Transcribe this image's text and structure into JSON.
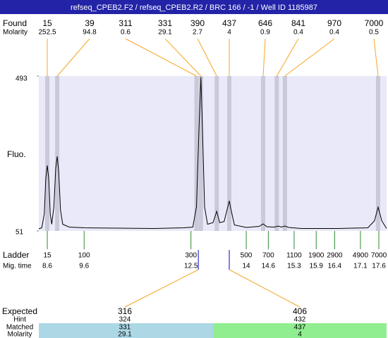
{
  "chart_data": {
    "type": "line",
    "title": "refseq_CPEB2.F2 / refseq_CPEB2.R2 / BRC 166 / -1 / Well ID 1185987",
    "y_label": "Fluo.",
    "color": "#000000",
    "xlim": [
      8.37,
      17.81
    ],
    "ylim": [
      51,
      493
    ],
    "yticks": [
      51,
      493
    ],
    "x": [
      8.37,
      8.45,
      8.52,
      8.56,
      8.6,
      8.64,
      8.68,
      8.72,
      8.78,
      8.83,
      8.87,
      8.91,
      8.96,
      9.02,
      9.2,
      9.6,
      10.5,
      11.5,
      12.3,
      12.55,
      12.65,
      12.72,
      12.77,
      12.81,
      12.87,
      12.95,
      13.1,
      13.2,
      13.28,
      13.4,
      13.5,
      13.54,
      13.58,
      13.68,
      14.0,
      14.35,
      14.46,
      14.56,
      14.75,
      14.88,
      14.95,
      15.05,
      15.15,
      15.5,
      16.5,
      17.3,
      17.48,
      17.58,
      17.68,
      17.81
    ],
    "values": [
      57,
      60,
      100,
      200,
      238,
      200,
      100,
      70,
      120,
      230,
      264,
      220,
      110,
      70,
      62,
      60,
      59,
      58,
      60,
      62,
      120,
      350,
      490,
      350,
      120,
      70,
      75,
      107,
      75,
      78,
      120,
      137,
      115,
      68,
      61,
      64,
      71,
      63,
      62,
      65,
      62,
      65,
      61,
      58,
      58,
      60,
      80,
      119,
      80,
      58
    ],
    "found": {
      "label": "Found",
      "sizes": [
        15,
        39,
        311,
        331,
        390,
        437,
        646,
        841,
        970,
        7000
      ],
      "molarity_label": "Molarity",
      "molarity": [
        252.5,
        94.8,
        0.6,
        29.1,
        2.7,
        4,
        0.9,
        0.4,
        0.4,
        0.5
      ],
      "times": [
        8.6,
        8.87,
        12.65,
        12.77,
        13.2,
        13.54,
        14.46,
        14.83,
        15.05,
        17.58
      ]
    },
    "ladder": {
      "label": "Ladder",
      "sizes": [
        15,
        100,
        300,
        500,
        700,
        1100,
        1900,
        2900,
        4900,
        7000
      ],
      "time_label": "Mig. time",
      "times": [
        8.6,
        9.6,
        12.5,
        14,
        14.6,
        15.3,
        15.9,
        16.4,
        17.1,
        17.6
      ]
    },
    "expected": {
      "label": "Expected",
      "sizes": [
        316,
        406
      ],
      "times": [
        12.7,
        13.54
      ],
      "hint_label": "Hint",
      "hints": [
        324,
        432
      ],
      "matched_label": "Matched",
      "matched": [
        331,
        437
      ],
      "molarity_label": "Molarity",
      "molarity": [
        29.1,
        4
      ]
    }
  }
}
